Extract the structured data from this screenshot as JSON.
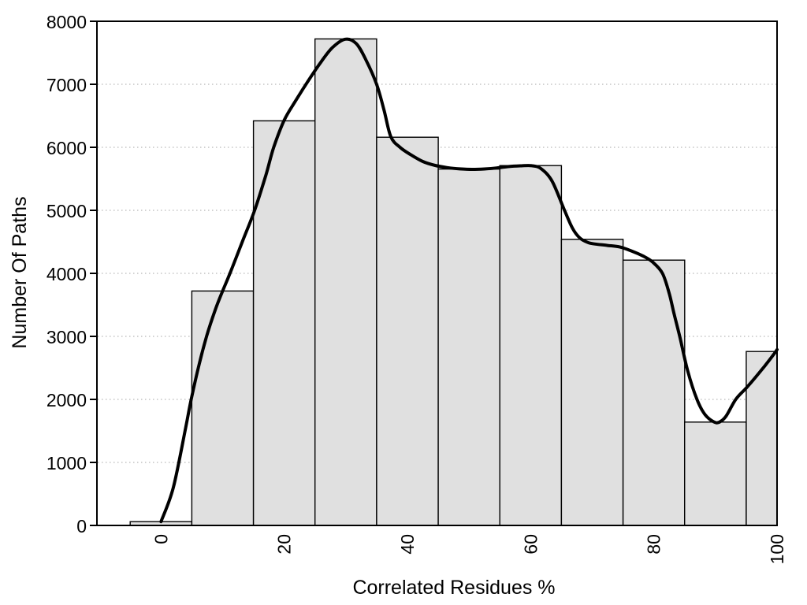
{
  "chart_data": {
    "type": "bar",
    "subtype": "histogram_with_smoothed_density_curve",
    "title": "",
    "xlabel": "Correlated Residues %",
    "ylabel": "Number Of Paths",
    "xlim": [
      -10.4,
      100
    ],
    "ylim": [
      0,
      8000
    ],
    "x_ticks": [
      0,
      20,
      40,
      60,
      80,
      100
    ],
    "y_ticks": [
      0,
      1000,
      2000,
      3000,
      4000,
      5000,
      6000,
      7000,
      8000
    ],
    "x_tick_label_rotation_deg": -90,
    "grid": {
      "horizontal_dotted_levels": [
        1000,
        2000,
        3000,
        4000,
        5000,
        6000,
        7000
      ],
      "vertical": false
    },
    "legend": "none",
    "bars": [
      {
        "x0": -5,
        "x1": 5,
        "center": 0,
        "value": 60
      },
      {
        "x0": 5,
        "x1": 15,
        "center": 10,
        "value": 3720
      },
      {
        "x0": 15,
        "x1": 25,
        "center": 20,
        "value": 6420
      },
      {
        "x0": 25,
        "x1": 35,
        "center": 30,
        "value": 7720
      },
      {
        "x0": 35,
        "x1": 45,
        "center": 40,
        "value": 6160
      },
      {
        "x0": 45,
        "x1": 55,
        "center": 50,
        "value": 5655
      },
      {
        "x0": 55,
        "x1": 65,
        "center": 60,
        "value": 5710
      },
      {
        "x0": 65,
        "x1": 75,
        "center": 70,
        "value": 4540
      },
      {
        "x0": 75,
        "x1": 85,
        "center": 80,
        "value": 4210
      },
      {
        "x0": 85,
        "x1": 95,
        "center": 90,
        "value": 1640
      },
      {
        "x0": 95,
        "x1": 100,
        "center": 97.5,
        "value": 2760
      }
    ],
    "curve": {
      "name": "smoothed-density-line",
      "points": [
        [
          0,
          60
        ],
        [
          2,
          600
        ],
        [
          4,
          1550
        ],
        [
          4.9,
          2000
        ],
        [
          6.2,
          2560
        ],
        [
          7.4,
          3000
        ],
        [
          8.8,
          3420
        ],
        [
          10,
          3720
        ],
        [
          11.2,
          4000
        ],
        [
          13.4,
          4550
        ],
        [
          15.2,
          5000
        ],
        [
          17,
          5550
        ],
        [
          18.3,
          6000
        ],
        [
          20,
          6430
        ],
        [
          21.8,
          6730
        ],
        [
          23.6,
          7010
        ],
        [
          25.8,
          7330
        ],
        [
          27.8,
          7580
        ],
        [
          29.9,
          7715
        ],
        [
          31.7,
          7645
        ],
        [
          33.3,
          7380
        ],
        [
          35,
          7000
        ],
        [
          36.2,
          6590
        ],
        [
          37.3,
          6170
        ],
        [
          38.8,
          6000
        ],
        [
          40.5,
          5885
        ],
        [
          42.5,
          5775
        ],
        [
          44.5,
          5712
        ],
        [
          46.5,
          5678
        ],
        [
          48.5,
          5658
        ],
        [
          50.5,
          5650
        ],
        [
          52.5,
          5656
        ],
        [
          54.5,
          5672
        ],
        [
          56.5,
          5695
        ],
        [
          58.5,
          5706
        ],
        [
          60.2,
          5708
        ],
        [
          61.7,
          5660
        ],
        [
          63.5,
          5460
        ],
        [
          65.5,
          5000
        ],
        [
          66.8,
          4715
        ],
        [
          68,
          4560
        ],
        [
          69.3,
          4490
        ],
        [
          70.5,
          4465
        ],
        [
          72.5,
          4443
        ],
        [
          74.5,
          4418
        ],
        [
          76.5,
          4350
        ],
        [
          78.3,
          4272
        ],
        [
          79.8,
          4180
        ],
        [
          81.4,
          4000
        ],
        [
          82.5,
          3680
        ],
        [
          83.3,
          3350
        ],
        [
          84.2,
          3000
        ],
        [
          85.5,
          2450
        ],
        [
          87,
          2000
        ],
        [
          88.3,
          1760
        ],
        [
          89.7,
          1645
        ],
        [
          90.6,
          1638
        ],
        [
          91.7,
          1730
        ],
        [
          93.3,
          2000
        ],
        [
          95,
          2180
        ],
        [
          96.5,
          2350
        ],
        [
          98,
          2530
        ],
        [
          99.2,
          2680
        ],
        [
          100,
          2790
        ]
      ]
    },
    "colors": {
      "background": "#ffffff",
      "bar_fill": "#e0e0e0",
      "bar_stroke": "#000000",
      "curve": "#000000",
      "grid_dots": "#c4c4c4",
      "axis": "#000000",
      "text": "#000000"
    }
  }
}
